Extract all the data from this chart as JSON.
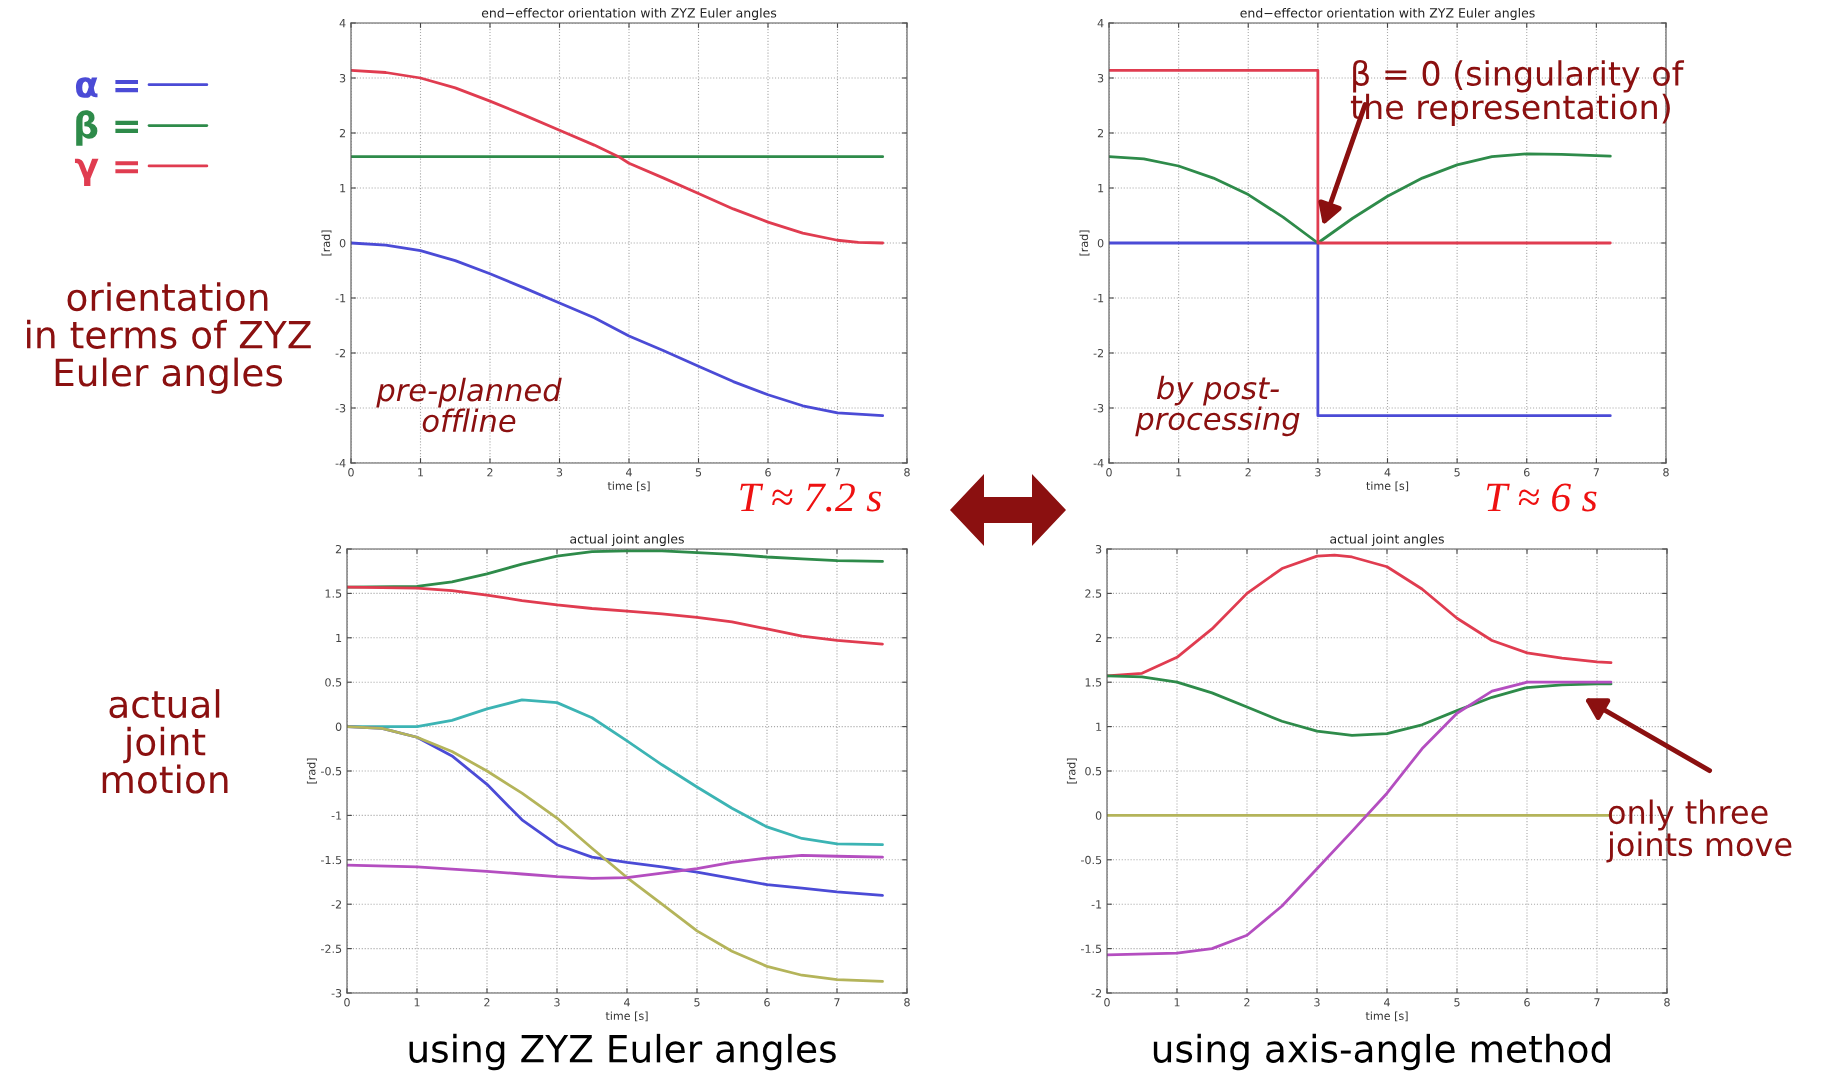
{
  "chart_data": [
    {
      "type": "line",
      "title": "end−effector orientation with ZYZ Euler angles",
      "xlabel": "time [s]",
      "ylabel": "[rad]",
      "xlim": [
        0,
        8
      ],
      "xticks": [
        0,
        1,
        2,
        3,
        4,
        5,
        6,
        7,
        8
      ],
      "ylim": [
        -4,
        4
      ],
      "yticks": [
        -4,
        -3,
        -2,
        -1,
        0,
        1,
        2,
        3,
        4
      ],
      "grid": true,
      "legend": "left",
      "series": [
        {
          "name": "α =",
          "color": "#4b4bd6",
          "x": [
            0,
            0.5,
            1,
            1.5,
            2,
            2.5,
            3,
            3.5,
            4,
            4.5,
            5,
            5.5,
            6,
            6.5,
            7,
            7.65
          ],
          "values": [
            0,
            -0.04,
            -0.14,
            -0.32,
            -0.56,
            -0.82,
            -1.09,
            -1.36,
            -1.69,
            -1.96,
            -2.24,
            -2.52,
            -2.76,
            -2.96,
            -3.09,
            -3.14
          ]
        },
        {
          "name": "β =",
          "color": "#2e8b4a",
          "x": [
            0,
            7.65
          ],
          "values": [
            1.57,
            1.57
          ]
        },
        {
          "name": "γ =",
          "color": "#e03c50",
          "x": [
            0,
            0.5,
            1,
            1.5,
            2,
            2.5,
            3,
            3.5,
            3.85,
            4,
            4.5,
            5,
            5.5,
            6,
            6.5,
            7,
            7.3,
            7.65
          ],
          "values": [
            3.14,
            3.1,
            3.0,
            2.82,
            2.58,
            2.32,
            2.05,
            1.78,
            1.57,
            1.45,
            1.18,
            0.9,
            0.62,
            0.38,
            0.18,
            0.05,
            0.01,
            0
          ]
        }
      ],
      "annotations": [
        "orientation\nin terms of ZYZ\nEuler angles",
        "pre-planned\noffline",
        "T ≈ 7.2 s"
      ]
    },
    {
      "type": "line",
      "title": "end−effector orientation with ZYZ Euler angles",
      "xlabel": "time [s]",
      "ylabel": "[rad]",
      "xlim": [
        0,
        8
      ],
      "xticks": [
        0,
        1,
        2,
        3,
        4,
        5,
        6,
        7,
        8
      ],
      "ylim": [
        -4,
        4
      ],
      "yticks": [
        -4,
        -3,
        -2,
        -1,
        0,
        1,
        2,
        3,
        4
      ],
      "grid": true,
      "series": [
        {
          "color": "#4b4bd6",
          "x": [
            0,
            3,
            3,
            7.2
          ],
          "values": [
            0,
            0,
            -3.14,
            -3.14
          ]
        },
        {
          "color": "#2e8b4a",
          "x": [
            0,
            0.5,
            1,
            1.5,
            2,
            2.5,
            3,
            3.5,
            4,
            4.5,
            5,
            5.5,
            6,
            6.5,
            7.2
          ],
          "values": [
            1.57,
            1.53,
            1.4,
            1.18,
            0.88,
            0.47,
            0,
            0.45,
            0.85,
            1.18,
            1.42,
            1.57,
            1.62,
            1.61,
            1.58
          ]
        },
        {
          "color": "#e03c50",
          "x": [
            0,
            3,
            3,
            7.2
          ],
          "values": [
            3.14,
            3.14,
            0,
            0
          ]
        }
      ],
      "annotations": [
        "β = 0 (singularity of\nthe representation)",
        "by post-\nprocessing",
        "T ≈ 6 s"
      ]
    },
    {
      "type": "line",
      "title": "actual joint angles",
      "xlabel": "time [s]",
      "ylabel": "[rad]",
      "xlim": [
        0,
        8
      ],
      "xticks": [
        0,
        1,
        2,
        3,
        4,
        5,
        6,
        7,
        8
      ],
      "ylim": [
        -3,
        2
      ],
      "yticks": [
        -3,
        -2.5,
        -2,
        -1.5,
        -1,
        -0.5,
        0,
        0.5,
        1,
        1.5,
        2
      ],
      "grid": true,
      "series": [
        {
          "color": "#2e8b4a",
          "x": [
            0,
            1,
            1.5,
            2,
            2.5,
            3,
            3.5,
            4,
            4.5,
            5,
            5.5,
            6,
            6.5,
            7,
            7.65
          ],
          "values": [
            1.57,
            1.58,
            1.63,
            1.72,
            1.83,
            1.92,
            1.97,
            1.98,
            1.98,
            1.96,
            1.94,
            1.91,
            1.89,
            1.87,
            1.86
          ]
        },
        {
          "color": "#e03c50",
          "x": [
            0,
            1,
            1.5,
            2,
            2.5,
            3,
            3.5,
            4,
            4.5,
            5,
            5.5,
            6,
            6.5,
            7,
            7.65
          ],
          "values": [
            1.57,
            1.56,
            1.53,
            1.48,
            1.42,
            1.37,
            1.33,
            1.3,
            1.27,
            1.23,
            1.18,
            1.1,
            1.02,
            0.97,
            0.93
          ]
        },
        {
          "color": "#3cb4b4",
          "x": [
            0,
            1,
            1.5,
            2,
            2.5,
            3,
            3.5,
            4,
            4.5,
            5,
            5.5,
            6,
            6.5,
            7,
            7.65
          ],
          "values": [
            0,
            0,
            0.07,
            0.2,
            0.3,
            0.27,
            0.1,
            -0.16,
            -0.43,
            -0.68,
            -0.92,
            -1.13,
            -1.26,
            -1.32,
            -1.33
          ]
        },
        {
          "color": "#4b4bd6",
          "x": [
            0,
            0.5,
            1,
            1.5,
            2,
            2.5,
            3,
            3.5,
            4,
            4.5,
            5,
            5.5,
            6,
            6.5,
            7,
            7.65
          ],
          "values": [
            0,
            -0.02,
            -0.12,
            -0.33,
            -0.65,
            -1.05,
            -1.33,
            -1.47,
            -1.53,
            -1.58,
            -1.64,
            -1.71,
            -1.78,
            -1.82,
            -1.86,
            -1.9
          ]
        },
        {
          "color": "#b4b45a",
          "x": [
            0,
            0.5,
            1,
            1.5,
            2,
            2.5,
            3,
            3.5,
            4,
            4.5,
            5,
            5.5,
            6,
            6.5,
            7,
            7.65
          ],
          "values": [
            0,
            -0.02,
            -0.12,
            -0.28,
            -0.5,
            -0.75,
            -1.03,
            -1.37,
            -1.7,
            -2.0,
            -2.3,
            -2.53,
            -2.7,
            -2.8,
            -2.85,
            -2.87
          ]
        },
        {
          "color": "#b44ec0",
          "x": [
            0,
            1,
            2,
            2.5,
            3,
            3.5,
            4,
            4.5,
            5,
            5.5,
            6,
            6.5,
            7,
            7.65
          ],
          "values": [
            -1.56,
            -1.58,
            -1.63,
            -1.66,
            -1.69,
            -1.71,
            -1.7,
            -1.65,
            -1.6,
            -1.53,
            -1.48,
            -1.45,
            -1.46,
            -1.47
          ]
        }
      ],
      "annotations": [
        "actual\njoint\nmotion",
        "using ZYZ Euler angles"
      ]
    },
    {
      "type": "line",
      "title": "actual joint angles",
      "xlabel": "time [s]",
      "ylabel": "[rad]",
      "xlim": [
        0,
        8
      ],
      "xticks": [
        0,
        1,
        2,
        3,
        4,
        5,
        6,
        7,
        8
      ],
      "ylim": [
        -2,
        3
      ],
      "yticks": [
        -2,
        -1.5,
        -1,
        -0.5,
        0,
        0.5,
        1,
        1.5,
        2,
        2.5,
        3
      ],
      "grid": true,
      "series": [
        {
          "color": "#e03c50",
          "x": [
            0,
            0.5,
            1,
            1.5,
            2,
            2.5,
            3,
            3.25,
            3.5,
            4,
            4.5,
            5,
            5.5,
            6,
            6.5,
            7,
            7.2
          ],
          "values": [
            1.57,
            1.6,
            1.78,
            2.1,
            2.5,
            2.78,
            2.92,
            2.93,
            2.91,
            2.8,
            2.55,
            2.22,
            1.97,
            1.83,
            1.77,
            1.73,
            1.72
          ]
        },
        {
          "color": "#2e8b4a",
          "x": [
            0,
            0.5,
            1,
            1.5,
            2,
            2.5,
            3,
            3.5,
            4,
            4.5,
            5,
            5.5,
            6,
            6.5,
            7,
            7.2
          ],
          "values": [
            1.57,
            1.56,
            1.5,
            1.38,
            1.22,
            1.06,
            0.95,
            0.9,
            0.92,
            1.02,
            1.18,
            1.33,
            1.44,
            1.47,
            1.48,
            1.48
          ]
        },
        {
          "color": "#b4b45a",
          "x": [
            0,
            7.2
          ],
          "values": [
            0,
            0
          ]
        },
        {
          "color": "#b44ec0",
          "x": [
            0,
            1,
            1.5,
            2,
            2.5,
            3,
            3.5,
            4,
            4.5,
            5,
            5.5,
            6,
            7.2
          ],
          "values": [
            -1.57,
            -1.55,
            -1.5,
            -1.35,
            -1.02,
            -0.6,
            -0.18,
            0.25,
            0.75,
            1.15,
            1.4,
            1.5,
            1.5
          ]
        }
      ],
      "annotations": [
        "only three\njoints move",
        "using axis-angle method"
      ]
    }
  ]
}
